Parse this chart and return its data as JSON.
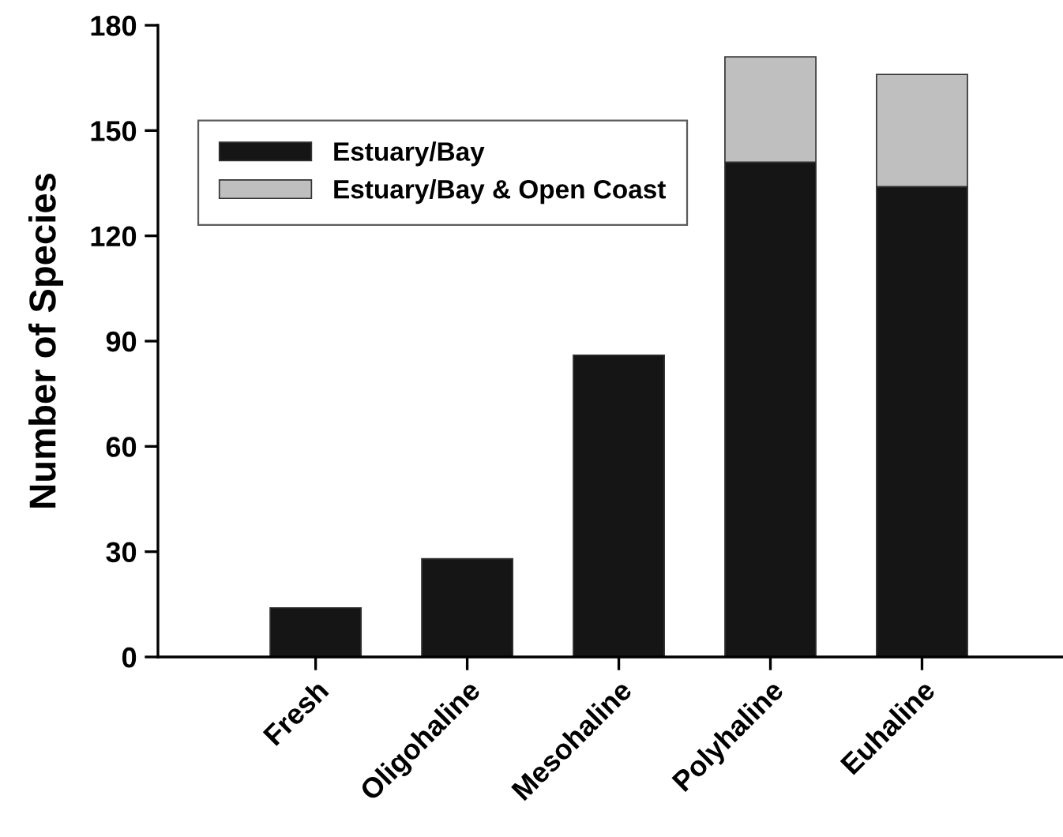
{
  "chart_data": {
    "type": "bar",
    "stacked": true,
    "ylabel": "Number of Species",
    "categories": [
      "Fresh",
      "Oligohaline",
      "Mesohaline",
      "Polyhaline",
      "Euhaline"
    ],
    "series": [
      {
        "name": "Estuary/Bay",
        "color": "#151515",
        "values": [
          14,
          28,
          86,
          141,
          134
        ]
      },
      {
        "name": "Estuary/Bay & Open Coast",
        "color": "#bfbfbf",
        "values": [
          0,
          0,
          0,
          30,
          32
        ]
      }
    ],
    "ylim": [
      0,
      180
    ],
    "yticks": [
      0,
      30,
      60,
      90,
      120,
      150,
      180
    ],
    "grid": false,
    "legend": "top left"
  }
}
